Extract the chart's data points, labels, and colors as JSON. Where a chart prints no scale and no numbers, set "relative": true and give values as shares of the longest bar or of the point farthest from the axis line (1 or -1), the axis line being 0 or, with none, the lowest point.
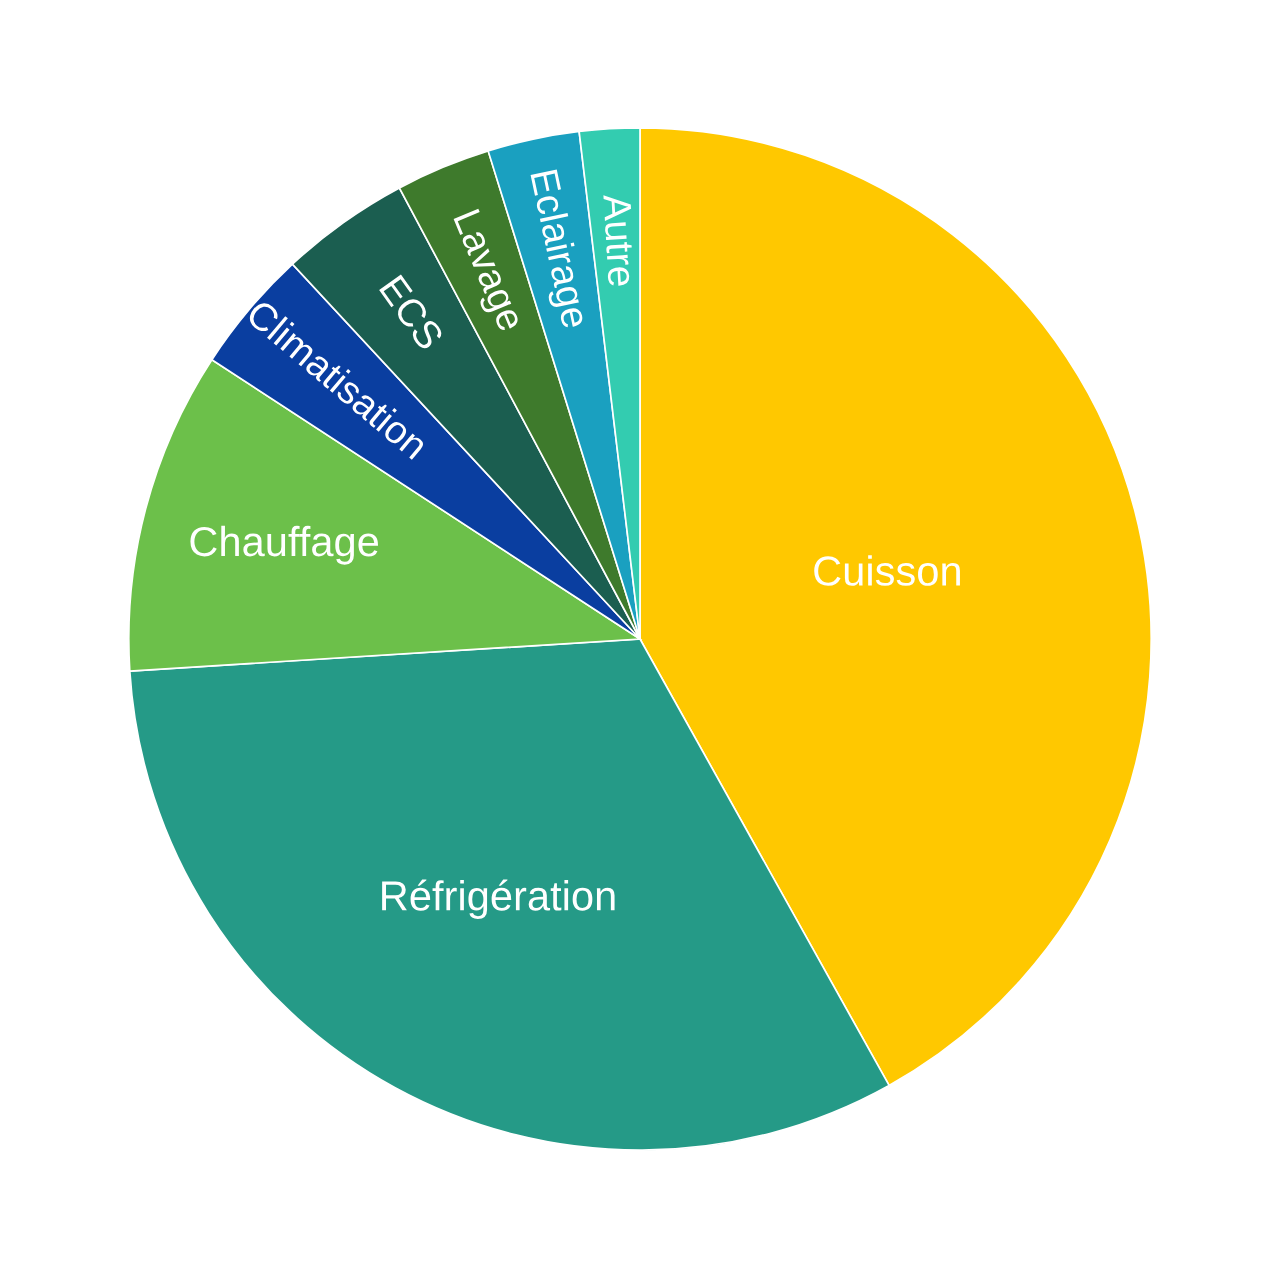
{
  "chart_data": {
    "type": "pie",
    "relative": true,
    "categories": [
      "Cuisson",
      "Réfrigération",
      "Chauffage",
      "Climatisation",
      "ECS",
      "Lavage",
      "Eclairage",
      "Autre"
    ],
    "values": [
      41.9,
      32.1,
      10.2,
      3.9,
      4.1,
      3.0,
      2.9,
      1.9
    ],
    "colors": [
      "#ffc800",
      "#259a87",
      "#6cc04a",
      "#0a3ea0",
      "#1b5e50",
      "#3e7a2c",
      "#1aa0c0",
      "#33ccb0"
    ]
  }
}
